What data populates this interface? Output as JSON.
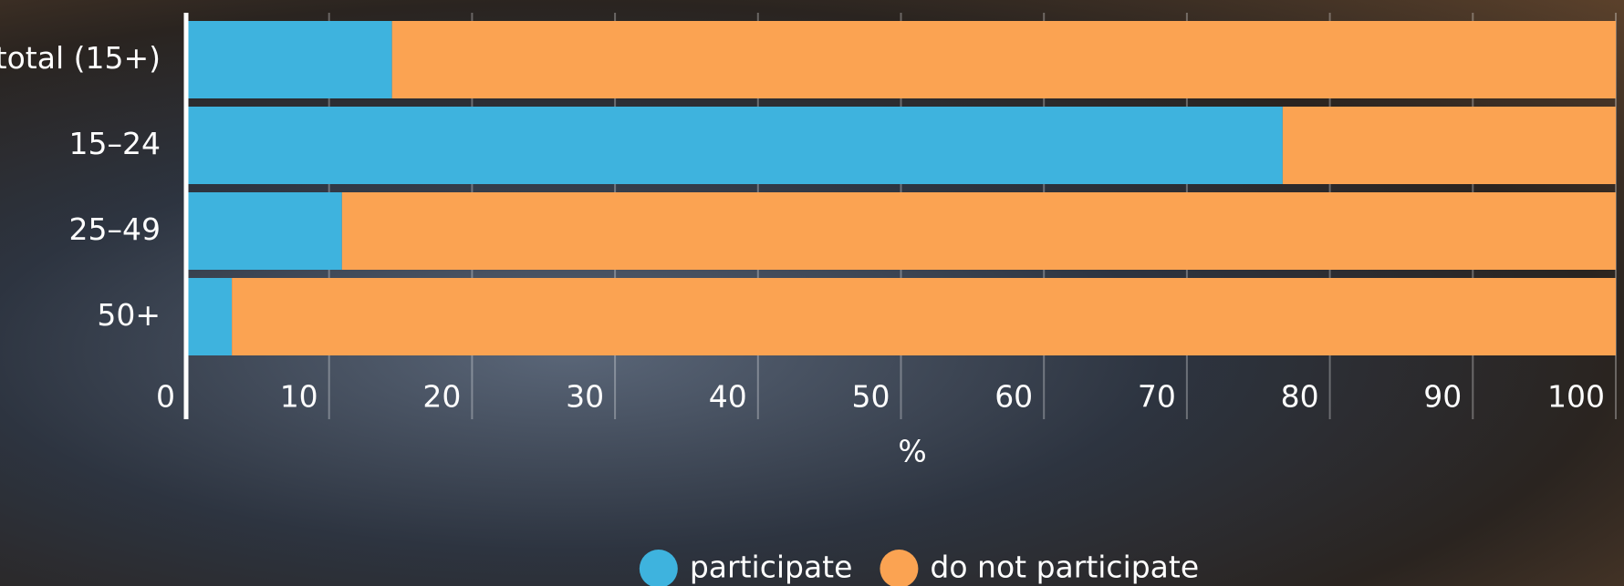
{
  "chart_data": {
    "type": "stacked-bar-horizontal",
    "categories": [
      "total (15+)",
      "15–24",
      "25–49",
      "50+"
    ],
    "series": [
      {
        "name": "participate",
        "color": "#3eb3de",
        "values": [
          14.4,
          76.7,
          10.9,
          3.2
        ]
      },
      {
        "name": "do not participate",
        "color": "#fba352",
        "values": [
          85.6,
          23.3,
          89.1,
          96.8
        ]
      }
    ],
    "xlim": [
      0,
      100
    ],
    "xticks": [
      0,
      10,
      20,
      30,
      40,
      50,
      60,
      70,
      80,
      90,
      100
    ],
    "xlabel": "%",
    "grid": true,
    "legend": "bottom"
  }
}
